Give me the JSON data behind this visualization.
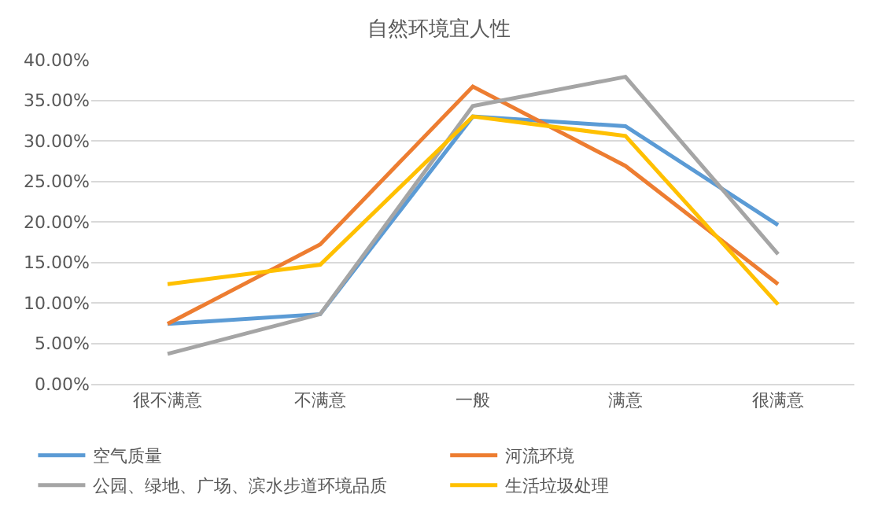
{
  "chart_data": {
    "type": "line",
    "title": "自然环境宜人性",
    "categories": [
      "很不满意",
      "不满意",
      "一般",
      "满意",
      "很满意"
    ],
    "series": [
      {
        "name": "空气质量",
        "color": "#5b9bd5",
        "values": [
          7.4,
          8.6,
          33.0,
          31.8,
          19.6
        ]
      },
      {
        "name": "河流环境",
        "color": "#ed7d31",
        "values": [
          7.4,
          17.2,
          36.7,
          26.9,
          12.3
        ]
      },
      {
        "name": "公园、绿地、广场、滨水步道环境品质",
        "color": "#a5a5a5",
        "values": [
          3.7,
          8.6,
          34.3,
          37.9,
          16.0
        ]
      },
      {
        "name": "生活垃圾处理",
        "color": "#ffc000",
        "values": [
          12.3,
          14.7,
          33.0,
          30.6,
          9.8
        ]
      }
    ],
    "ylim": [
      0,
      40
    ],
    "yticks": [
      {
        "value": 0,
        "label": "0.00%"
      },
      {
        "value": 5,
        "label": "5.00%"
      },
      {
        "value": 10,
        "label": "10.00%"
      },
      {
        "value": 15,
        "label": "15.00%"
      },
      {
        "value": 20,
        "label": "20.00%"
      },
      {
        "value": 25,
        "label": "25.00%"
      },
      {
        "value": 30,
        "label": "30.00%"
      },
      {
        "value": 35,
        "label": "35.00%"
      },
      {
        "value": 40,
        "label": "40.00%"
      }
    ],
    "grid": "y",
    "legend": "bottom",
    "marker": "none",
    "line_style": "solid"
  }
}
